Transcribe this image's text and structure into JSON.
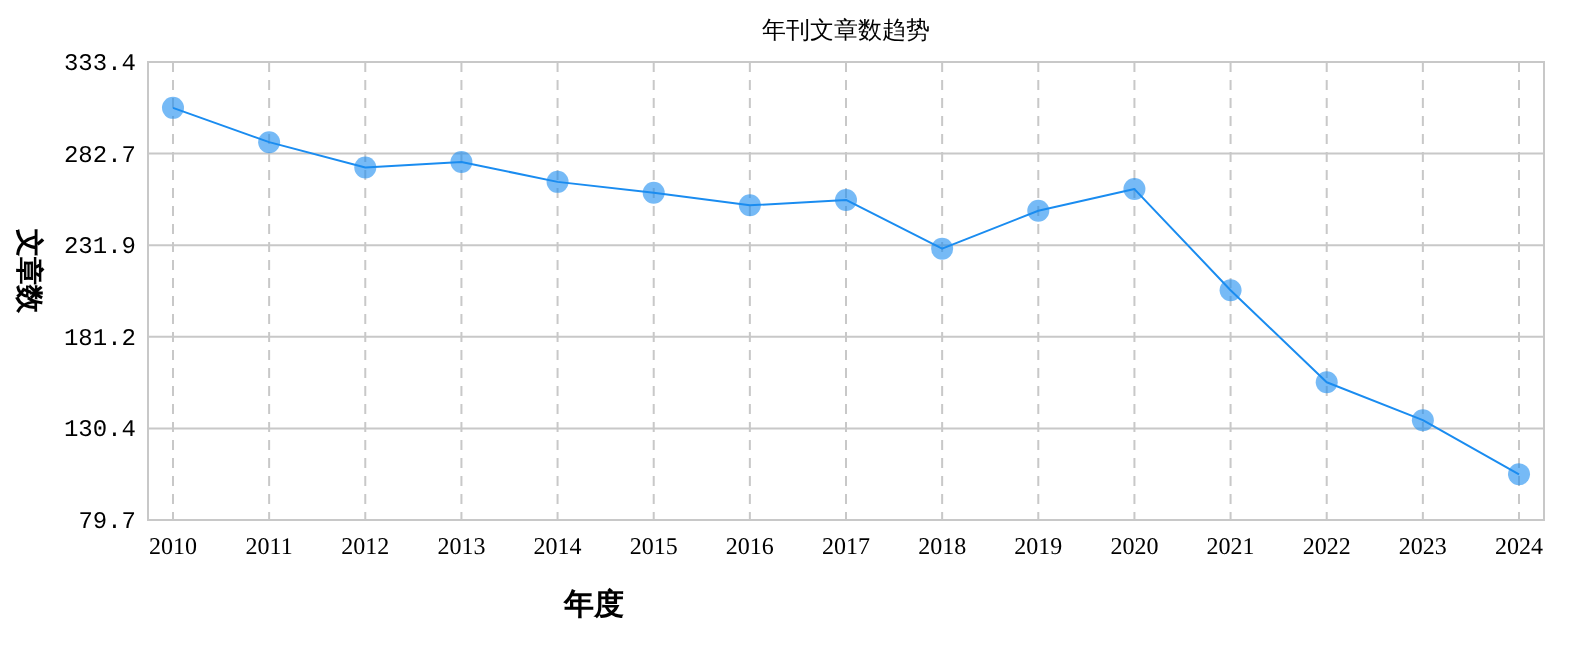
{
  "chart_data": {
    "type": "line",
    "title": "年刊文章数趋势",
    "xlabel": "年度",
    "ylabel": "文章数",
    "categories": [
      "2010",
      "2011",
      "2012",
      "2013",
      "2014",
      "2015",
      "2016",
      "2017",
      "2018",
      "2019",
      "2020",
      "2021",
      "2022",
      "2023",
      "2024"
    ],
    "series": [
      {
        "color": "#1a8cf0",
        "values": [
          308,
          289,
          275,
          278,
          267,
          261,
          254,
          257,
          230,
          251,
          263,
          207,
          156,
          135,
          105
        ]
      }
    ],
    "ylim": [
      79.7,
      333.4
    ],
    "yticks": [
      79.7,
      130.4,
      181.2,
      231.9,
      282.7,
      333.4
    ],
    "grid": true,
    "marker": "circle",
    "line_style": "solid"
  }
}
